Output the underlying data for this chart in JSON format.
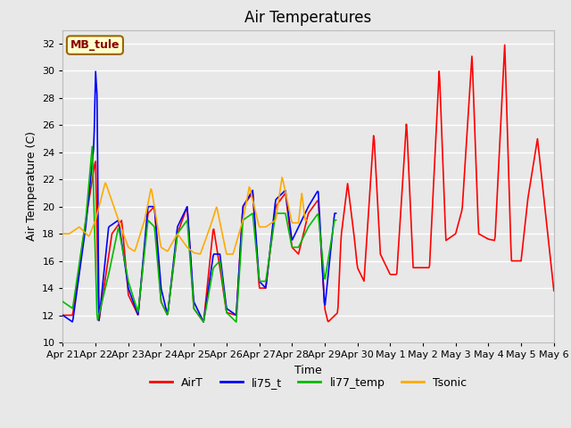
{
  "title": "Air Temperatures",
  "xlabel": "Time",
  "ylabel": "Air Temperature (C)",
  "ylim": [
    10,
    33
  ],
  "yticks": [
    10,
    12,
    14,
    16,
    18,
    20,
    22,
    24,
    26,
    28,
    30,
    32
  ],
  "xlim": [
    0,
    15
  ],
  "plot_bg_color": "#e8e8e8",
  "grid_color": "white",
  "colors": {
    "AirT": "#ff0000",
    "li75_t": "#0000ff",
    "li77_temp": "#00bb00",
    "Tsonic": "#ffaa00"
  },
  "annotation_text": "MB_tule",
  "annotation_bbox": {
    "boxstyle": "round,pad=0.3",
    "facecolor": "#ffffcc",
    "edgecolor": "#996600",
    "linewidth": 1.5
  },
  "annotation_color": "#880000",
  "annotation_fontsize": 9,
  "annotation_fontweight": "bold",
  "title_fontsize": 12,
  "label_fontsize": 9,
  "tick_fontsize": 8,
  "legend_fontsize": 9,
  "tick_labels": [
    "Apr 21",
    "Apr 22",
    "Apr 23",
    "Apr 24",
    "Apr 25",
    "Apr 26",
    "Apr 27",
    "Apr 28",
    "Apr 29",
    "Apr 30",
    "May 1",
    "May 2",
    "May 3",
    "May 4",
    "May 5",
    "May 6"
  ]
}
